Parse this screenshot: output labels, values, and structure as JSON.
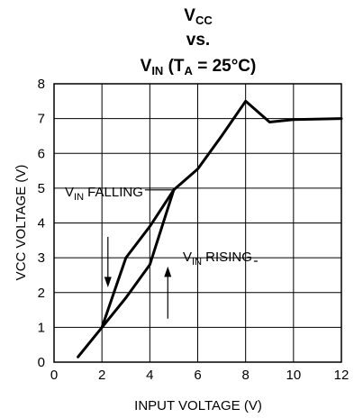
{
  "chart_data": {
    "type": "line",
    "title": {
      "line1_main": "V",
      "line1_sub": "CC",
      "line2": "vs.",
      "line3_main": "V",
      "line3_sub": "IN",
      "line3_rest": " (T",
      "line3_sub2": "A",
      "line3_end": " = 25°C)"
    },
    "xlabel": "INPUT VOLTAGE  (V)",
    "ylabel": "VCC VOLTAGE  (V)",
    "xlim": [
      0,
      12
    ],
    "ylim": [
      0,
      8
    ],
    "xticks": [
      0,
      2,
      4,
      6,
      8,
      10,
      12
    ],
    "yticks": [
      0,
      1,
      2,
      3,
      4,
      5,
      6,
      7,
      8
    ],
    "grid": true,
    "series": [
      {
        "name": "VIN FALLING",
        "x": [
          2,
          3,
          4,
          5
        ],
        "y": [
          1.0,
          3.0,
          3.9,
          4.95
        ]
      },
      {
        "name": "VIN RISING",
        "x": [
          1,
          2,
          3,
          4,
          5,
          6,
          7,
          8,
          9,
          10,
          12
        ],
        "y": [
          0.15,
          1.0,
          1.85,
          2.8,
          4.95,
          5.55,
          6.5,
          7.5,
          6.9,
          6.97,
          7.0
        ]
      }
    ],
    "annotations": [
      {
        "main": "V",
        "sub": "IN",
        "rest": " FALLING"
      },
      {
        "main": "V",
        "sub": "IN",
        "rest": " RISING"
      }
    ]
  }
}
